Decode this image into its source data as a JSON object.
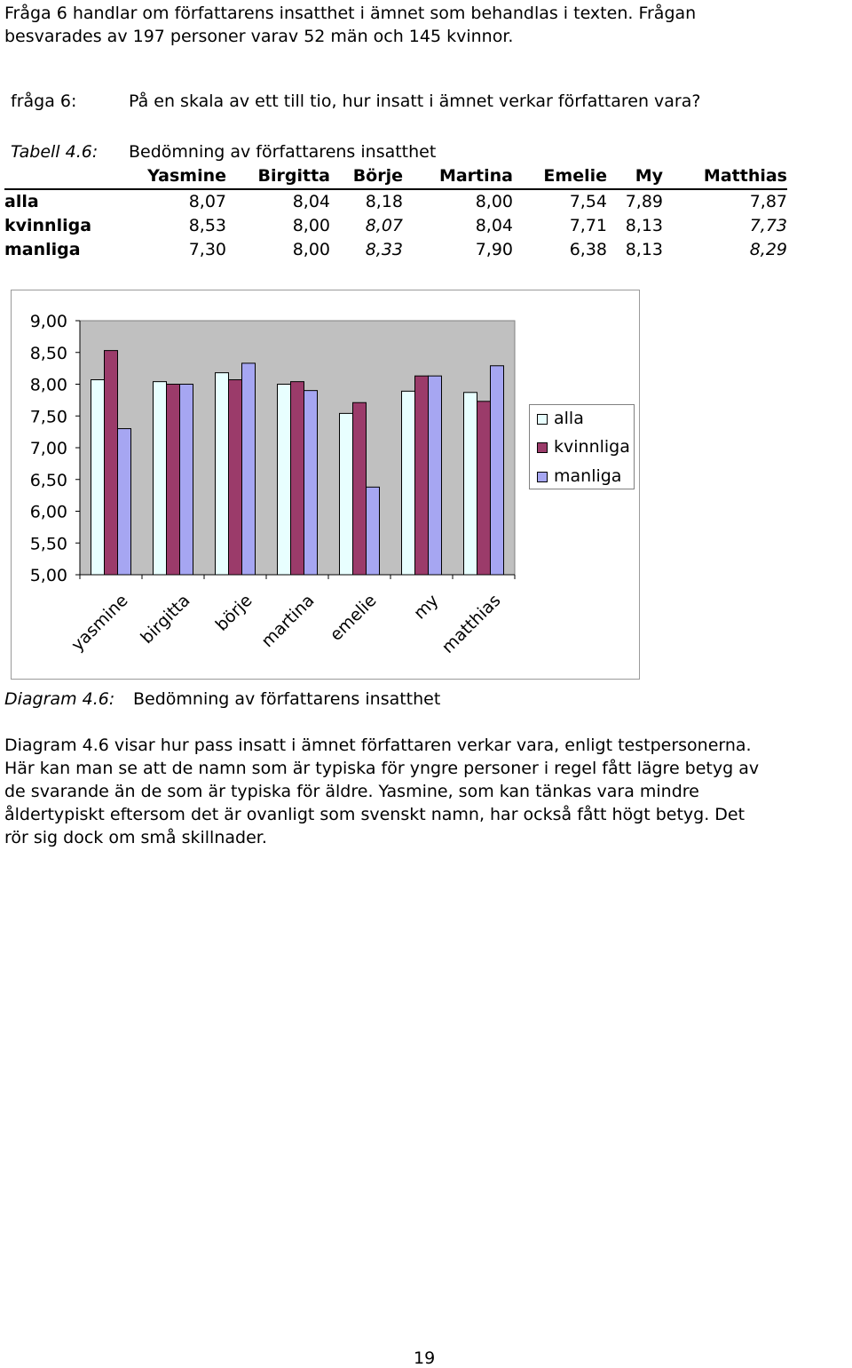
{
  "intro": {
    "line1": "Fråga 6 handlar om författarens insatthet i ämnet som behandlas i texten. Frågan",
    "line2": "besvarades av 197 personer varav 52 män och 145 kvinnor."
  },
  "question": {
    "label": "fråga 6:",
    "text": "På en skala av ett till tio, hur insatt i ämnet verkar författaren vara?"
  },
  "table": {
    "caption_label": "Tabell 4.6:",
    "caption_text": "Bedömning av författarens insatthet",
    "columns": [
      "Yasmine",
      "Birgitta",
      "Börje",
      "Martina",
      "Emelie",
      "My",
      "Matthias"
    ],
    "rows": [
      {
        "label": "alla",
        "values": [
          "8,07",
          "8,04",
          "8,18",
          "8,00",
          "7,54",
          "7,89",
          "7,87"
        ]
      },
      {
        "label": "kvinnliga",
        "values": [
          "8,53",
          "8,00",
          "8,07",
          "8,04",
          "7,71",
          "8,13",
          "7,73"
        ]
      },
      {
        "label": "manliga",
        "values": [
          "7,30",
          "8,00",
          "8,33",
          "7,90",
          "6,38",
          "8,13",
          "8,29"
        ]
      }
    ]
  },
  "chart_data": {
    "type": "bar",
    "categories": [
      "yasmine",
      "birgitta",
      "börje",
      "martina",
      "emelie",
      "my",
      "matthias"
    ],
    "series": [
      {
        "name": "alla",
        "values": [
          8.07,
          8.04,
          8.18,
          8.0,
          7.54,
          7.89,
          7.87
        ],
        "color": "#e8ffff"
      },
      {
        "name": "kvinnliga",
        "values": [
          8.53,
          8.0,
          8.07,
          8.04,
          7.71,
          8.13,
          7.73
        ],
        "color": "#9b3b6a"
      },
      {
        "name": "manliga",
        "values": [
          7.3,
          8.0,
          8.33,
          7.9,
          6.38,
          8.13,
          8.29
        ],
        "color": "#a6a6f2"
      }
    ],
    "ylim": [
      5.0,
      9.0
    ],
    "ytick_labels": [
      "9,00",
      "8,50",
      "8,00",
      "7,50",
      "7,00",
      "6,50",
      "6,00",
      "5,50",
      "5,00"
    ],
    "plot_background": "#c0c0c0",
    "legend_position": "right",
    "grid": false
  },
  "diagram_caption": {
    "label": "Diagram 4.6:",
    "text": "Bedömning av författarens insatthet"
  },
  "body": {
    "line1": "Diagram 4.6 visar hur pass insatt i ämnet författaren verkar vara, enligt testpersonerna.",
    "line2": "Här kan man se att de namn som är typiska för yngre personer i regel fått lägre betyg av",
    "line3": "de svarande än de som är typiska för äldre. Yasmine, som kan tänkas vara mindre",
    "line4": "åldertypiskt eftersom det är ovanligt som svenskt namn, har också fått högt betyg. Det",
    "line5": "rör sig dock om små skillnader."
  },
  "page_number": "19"
}
